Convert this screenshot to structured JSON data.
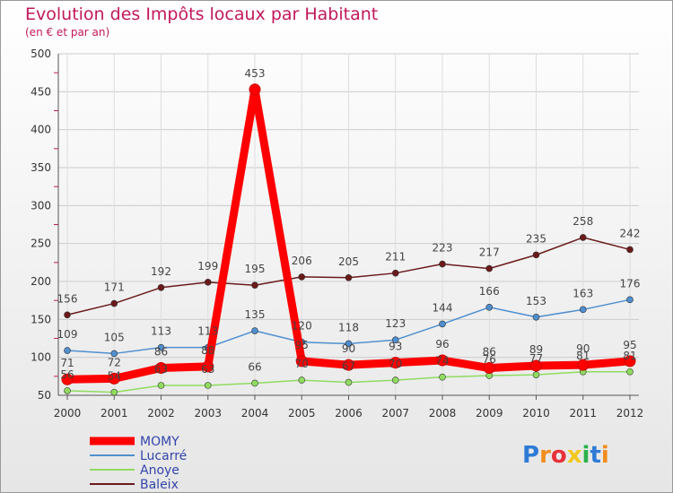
{
  "chart_data": {
    "type": "line",
    "title": "Evolution des Impôts locaux par Habitant",
    "subtitle": "(en € et par an)",
    "xlabel": "",
    "ylabel": "",
    "ylim": [
      50,
      500
    ],
    "yticks": [
      50,
      100,
      150,
      200,
      250,
      300,
      350,
      400,
      450,
      500
    ],
    "categories": [
      "2000",
      "2001",
      "2002",
      "2003",
      "2004",
      "2005",
      "2006",
      "2007",
      "2008",
      "2009",
      "2010",
      "2011",
      "2012"
    ],
    "legend_position": "bottom-left",
    "series": [
      {
        "name": "MOMY",
        "color": "#ff0000",
        "values": [
          71,
          72,
          86,
          88,
          453,
          95,
          90,
          93,
          96,
          86,
          89,
          90,
          95
        ]
      },
      {
        "name": "Lucarré",
        "color": "#4f8fcf",
        "values": [
          109,
          105,
          113,
          113,
          135,
          120,
          118,
          123,
          144,
          166,
          153,
          163,
          176
        ]
      },
      {
        "name": "Anoye",
        "color": "#8fdc5f",
        "values": [
          56,
          54,
          63,
          63,
          66,
          70,
          67,
          70,
          74,
          76,
          77,
          81,
          81
        ]
      },
      {
        "name": "Baleix",
        "color": "#6b1a1a",
        "values": [
          156,
          171,
          192,
          199,
          195,
          206,
          205,
          211,
          223,
          217,
          235,
          258,
          242
        ]
      }
    ]
  },
  "logo": {
    "text": "Proxiti"
  }
}
